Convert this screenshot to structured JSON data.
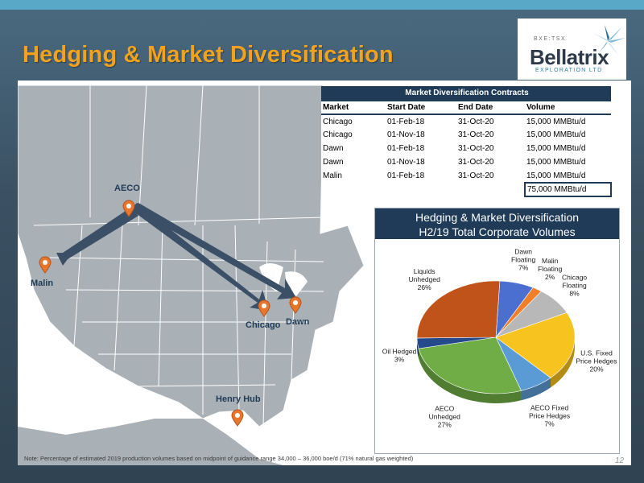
{
  "slide": {
    "title": "Hedging & Market Diversification",
    "page_number": "12",
    "footnote": "Note: Percentage of estimated 2019 production volumes based on midpoint of guidance range 34,000 – 36,000 boe/d (71% natural gas weighted)"
  },
  "logo": {
    "ticker": "BXE:TSX",
    "name": "Bellatrix",
    "subtitle": "EXPLORATION LTD"
  },
  "map": {
    "labels": {
      "aeco": "AECO",
      "malin": "Malin",
      "chicago": "Chicago",
      "dawn": "Dawn",
      "henry_hub": "Henry Hub"
    },
    "pin_color": "#e8772e",
    "arrow_color": "#3b4f66"
  },
  "contracts": {
    "caption": "Market Diversification Contracts",
    "headers": [
      "Market",
      "Start Date",
      "End Date",
      "Volume"
    ],
    "rows": [
      [
        "Chicago",
        "01-Feb-18",
        "31-Oct-20",
        "15,000 MMBtu/d"
      ],
      [
        "Chicago",
        "01-Nov-18",
        "31-Oct-20",
        "15,000 MMBtu/d"
      ],
      [
        "Dawn",
        "01-Feb-18",
        "31-Oct-20",
        "15,000 MMBtu/d"
      ],
      [
        "Dawn",
        "01-Nov-18",
        "31-Oct-20",
        "15,000 MMBtu/d"
      ],
      [
        "Malin",
        "01-Feb-18",
        "31-Oct-20",
        "15,000 MMBtu/d"
      ]
    ],
    "total": "75,000 MMBtu/d"
  },
  "chart_data": {
    "type": "pie",
    "title": "Hedging & Market Diversification",
    "subtitle": "H2/19 Total Corporate Volumes",
    "categories": [
      "Dawn Floating",
      "Malin Floating",
      "Chicago Floating",
      "U.S. Fixed Price Hedges",
      "AECO Fixed Price Hedges",
      "AECO Unhedged",
      "Oil Hedged",
      "Liquids Unhedged"
    ],
    "label_lines": [
      [
        "Dawn",
        "Floating",
        "7%"
      ],
      [
        "Malin",
        "Floating",
        "2%"
      ],
      [
        "Chicago",
        "Floating",
        "8%"
      ],
      [
        "U.S. Fixed",
        "Price Hedges",
        "20%"
      ],
      [
        "AECO Fixed",
        "Price Hedges",
        "7%"
      ],
      [
        "AECO",
        "Unhedged",
        "27%"
      ],
      [
        "Oil Hedged",
        "3%"
      ],
      [
        "Liquids",
        "Unhedged",
        "26%"
      ]
    ],
    "values": [
      7,
      2,
      8,
      20,
      7,
      27,
      3,
      26
    ],
    "colors": [
      "#4a6fd0",
      "#f07f2a",
      "#b8b8b8",
      "#f7c31e",
      "#5b9bd5",
      "#70ad47",
      "#244a8c",
      "#c0531a"
    ],
    "style": "3d-tilted",
    "legend": "none",
    "data_labels": "outside"
  }
}
